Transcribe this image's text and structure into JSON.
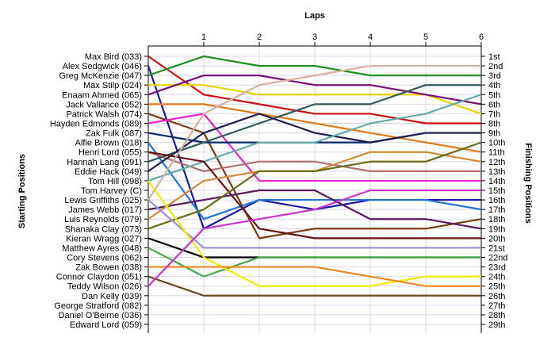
{
  "chart_data": {
    "type": "line",
    "title": "Laps",
    "ylabel_left": "Starting Positions",
    "ylabel_right": "Finishing Positions",
    "x_laps": [
      1,
      2,
      3,
      4,
      5,
      6
    ],
    "y_positions_range": [
      1,
      29
    ],
    "y_inverted": true,
    "grid": true,
    "finishing_labels": [
      "1st",
      "2nd",
      "3rd",
      "4th",
      "5th",
      "6th",
      "7th",
      "8th",
      "9th",
      "10th",
      "11th",
      "12th",
      "13th",
      "14th",
      "15th",
      "16th",
      "17th",
      "18th",
      "19th",
      "20th",
      "21st",
      "22nd",
      "23rd",
      "24th",
      "25th",
      "26th",
      "27th",
      "28th",
      "29th"
    ],
    "series": [
      {
        "name": "Max Bird (033)",
        "color": "#cc1111",
        "positions": [
          1,
          5,
          6,
          7,
          7,
          8,
          8
        ]
      },
      {
        "name": "Alex Sedgwick (046)",
        "color": "#1a1aaa",
        "positions": [
          2,
          19,
          16,
          17,
          16,
          16,
          16
        ]
      },
      {
        "name": "Greg McKenzie (047)",
        "color": "#1f8f1f",
        "positions": [
          3,
          1,
          2,
          2,
          3,
          3,
          3
        ]
      },
      {
        "name": "Max Stilp (024)",
        "color": "#e8d200",
        "positions": [
          4,
          4,
          5,
          5,
          5,
          5,
          7
        ]
      },
      {
        "name": "Enaam Ahmed (065)",
        "color": "#7a0f7a",
        "positions": [
          5,
          3,
          3,
          4,
          4,
          5,
          6
        ]
      },
      {
        "name": "Jack Vallance (052)",
        "color": "#e07a1a",
        "positions": [
          6,
          6,
          7,
          8,
          9,
          10,
          11
        ]
      },
      {
        "name": "Patrick Walsh (074)",
        "color": "#7a3b10",
        "positions": [
          7,
          9,
          20,
          19,
          19,
          19,
          18
        ]
      },
      {
        "name": "Hayden Edmonds (089)",
        "color": "#ee22cc",
        "positions": [
          8,
          7,
          14,
          14,
          14,
          14,
          14
        ]
      },
      {
        "name": "Zak Fulk (087)",
        "color": "#0a2a70",
        "positions": [
          9,
          10,
          10,
          10,
          10,
          9,
          9
        ]
      },
      {
        "name": "Alfie Brown (018)",
        "color": "#2277cc",
        "positions": [
          10,
          18,
          16,
          16,
          16,
          16,
          17
        ]
      },
      {
        "name": "Henri Lord (055)",
        "color": "#b07070",
        "positions": [
          11,
          13,
          12,
          12,
          13,
          13,
          13
        ]
      },
      {
        "name": "Hannah Lang (091)",
        "color": "#2e5a5a",
        "positions": [
          12,
          10,
          8,
          6,
          6,
          4,
          4
        ]
      },
      {
        "name": "Eddie Hack (049)",
        "color": "#1e1e50",
        "positions": [
          13,
          9,
          7,
          9,
          10,
          9,
          9
        ]
      },
      {
        "name": "Tom Hill (098)",
        "color": "#66aaaa",
        "positions": [
          14,
          12,
          10,
          10,
          8,
          7,
          5
        ]
      },
      {
        "name": "Tom Harvey (C)",
        "color": "#6a0f0f",
        "positions": [
          11,
          12,
          19,
          20,
          20,
          20,
          20
        ]
      },
      {
        "name": "Lewis Griffiths (025)",
        "color": "#d8b0a0",
        "positions": [
          16,
          7,
          4,
          3,
          2,
          2,
          2
        ]
      },
      {
        "name": "James Webb (017)",
        "color": "#5a1a5a",
        "positions": [
          17,
          16,
          15,
          15,
          18,
          18,
          19
        ]
      },
      {
        "name": "Luis Reynolds (079)",
        "color": "#d08a3a",
        "positions": [
          18,
          14,
          13,
          13,
          11,
          11,
          12
        ]
      },
      {
        "name": "Shanaka Clay (073)",
        "color": "#6b6b1a",
        "positions": [
          19,
          17,
          13,
          13,
          12,
          12,
          10
        ]
      },
      {
        "name": "Kieran Wragg (027)",
        "color": "#000000",
        "positions": [
          20,
          22,
          22,
          22,
          22,
          22,
          22
        ]
      },
      {
        "name": "Matthew Ayres (048)",
        "color": "#9b8fd8",
        "positions": [
          16,
          21,
          21,
          21,
          21,
          21,
          21
        ]
      },
      {
        "name": "Cory Stevens (062)",
        "color": "#44aa44",
        "positions": [
          21,
          24,
          22,
          22,
          22,
          22,
          22
        ]
      },
      {
        "name": "Zak Bowen (038)",
        "color": "#eeee00",
        "positions": [
          14,
          22,
          25,
          25,
          25,
          24,
          24
        ]
      },
      {
        "name": "Connor Claydon (051)",
        "color": "#ee8822",
        "positions": [
          23,
          23,
          23,
          23,
          24,
          25,
          25
        ]
      },
      {
        "name": "Teddy Wilson (026)",
        "color": "#6b4a20",
        "positions": [
          24,
          26,
          26,
          26,
          26,
          26,
          26
        ]
      },
      {
        "name": "Dan Kelly (039)",
        "color": "#cc33cc",
        "positions": [
          25,
          19,
          18,
          17,
          15,
          15,
          15
        ]
      },
      {
        "name": "George Stratford (082)",
        "color": null,
        "positions": [
          26
        ]
      },
      {
        "name": "Daniel O'Beirne (036)",
        "color": null,
        "positions": [
          27
        ]
      },
      {
        "name": "Edward Lord (059)",
        "color": null,
        "positions": [
          28
        ]
      }
    ]
  }
}
